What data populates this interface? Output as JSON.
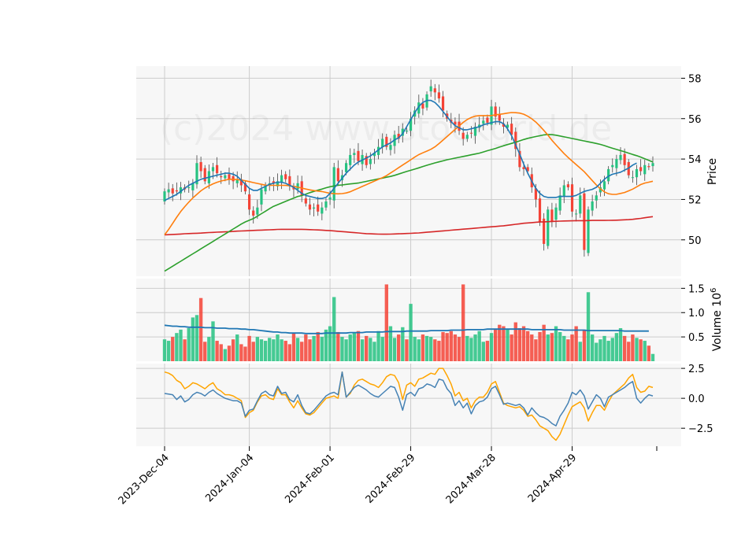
{
  "watermark": "(c)2024 www.stockgrid.de",
  "colors": {
    "up": "#26c281",
    "down": "#f44336",
    "ma_fast": "#1f77b4",
    "ma_mid": "#ff7f0e",
    "ma_slow": "#2ca02c",
    "ma_long": "#d62728",
    "vol_avg": "#1f77b4",
    "osc_a": "#4682b4",
    "osc_b": "#ffa500",
    "panel_bg": "#f7f7f7",
    "grid": "#cccccc"
  },
  "chart_data": [
    {
      "type": "candlestick",
      "ylabel": "Price",
      "ylim": [
        48.2,
        58.6
      ],
      "yticks": [
        50,
        52,
        54,
        56,
        58
      ],
      "xticks": [
        {
          "index": 0,
          "label": "2023-Dec-04"
        },
        {
          "index": 21,
          "label": "2024-Jan-04"
        },
        {
          "index": 41,
          "label": "2024-Feb-01"
        },
        {
          "index": 61,
          "label": "2024-Feb-29"
        },
        {
          "index": 81,
          "label": "2024-Mar-28"
        },
        {
          "index": 101,
          "label": "2024-Apr-29"
        }
      ],
      "close": [
        52.4,
        52.5,
        52.3,
        52.4,
        52.6,
        52.5,
        52.6,
        52.8,
        53.8,
        53.4,
        52.9,
        53.4,
        53.6,
        53.3,
        53.1,
        53.2,
        53.0,
        52.9,
        53.0,
        52.7,
        52.4,
        51.5,
        51.2,
        51.6,
        52.5,
        52.7,
        52.8,
        52.8,
        52.9,
        53.2,
        53.0,
        52.7,
        52.5,
        52.8,
        52.2,
        51.8,
        51.5,
        51.6,
        51.4,
        51.6,
        51.9,
        52.1,
        53.6,
        52.9,
        53.2,
        53.8,
        54.2,
        54.3,
        53.9,
        54.2,
        53.7,
        54.0,
        54.3,
        54.6,
        55.0,
        54.6,
        54.7,
        55.2,
        55.0,
        55.5,
        55.4,
        56.0,
        56.4,
        56.8,
        56.5,
        57.2,
        57.6,
        57.3,
        57.0,
        56.4,
        56.0,
        55.8,
        55.7,
        55.4,
        55.0,
        55.2,
        55.3,
        55.6,
        55.7,
        55.9,
        55.8,
        56.6,
        56.1,
        55.9,
        55.6,
        55.7,
        55.2,
        54.5,
        53.6,
        53.5,
        53.4,
        52.6,
        52.0,
        50.9,
        49.8,
        51.5,
        50.9,
        51.6,
        52.2,
        52.7,
        52.6,
        51.4,
        51.3,
        52.2,
        49.5,
        51.5,
        51.9,
        52.2,
        52.6,
        52.9,
        53.5,
        53.7,
        54.0,
        54.2,
        53.7,
        53.2,
        53.1,
        53.5,
        53.4,
        53.7,
        53.6,
        53.8
      ],
      "ma_fast": [
        51.95,
        52.05,
        52.15,
        52.25,
        52.4,
        52.55,
        52.7,
        52.8,
        52.9,
        53.0,
        53.05,
        53.1,
        53.15,
        53.2,
        53.25,
        53.3,
        53.3,
        53.25,
        53.15,
        52.95,
        52.75,
        52.55,
        52.45,
        52.45,
        52.55,
        52.65,
        52.75,
        52.8,
        52.85,
        52.85,
        52.8,
        52.7,
        52.6,
        52.45,
        52.3,
        52.2,
        52.15,
        52.1,
        52.05,
        52.05,
        52.1,
        52.3,
        52.55,
        52.8,
        53.05,
        53.3,
        53.5,
        53.7,
        53.85,
        53.95,
        54.05,
        54.15,
        54.3,
        54.45,
        54.6,
        54.7,
        54.8,
        54.95,
        55.05,
        55.25,
        55.6,
        55.95,
        56.3,
        56.6,
        56.8,
        56.9,
        56.9,
        56.8,
        56.6,
        56.35,
        56.1,
        55.85,
        55.65,
        55.55,
        55.45,
        55.45,
        55.5,
        55.55,
        55.6,
        55.7,
        55.75,
        55.8,
        55.85,
        55.85,
        55.75,
        55.5,
        55.15,
        54.7,
        54.25,
        53.75,
        53.3,
        52.9,
        52.55,
        52.3,
        52.15,
        52.1,
        52.1,
        52.1,
        52.15,
        52.15,
        52.15,
        52.15,
        52.2,
        52.3,
        52.4,
        52.45,
        52.5,
        52.6,
        52.8,
        53.0,
        53.15,
        53.25,
        53.3,
        53.35,
        53.45,
        53.55,
        53.7,
        53.8
      ],
      "ma_mid": [
        50.25,
        50.55,
        50.9,
        51.25,
        51.55,
        51.8,
        52.05,
        52.25,
        52.45,
        52.6,
        52.72,
        52.82,
        52.9,
        52.95,
        53.0,
        53.0,
        52.98,
        52.95,
        52.9,
        52.85,
        52.8,
        52.75,
        52.7,
        52.7,
        52.7,
        52.7,
        52.7,
        52.68,
        52.65,
        52.6,
        52.55,
        52.5,
        52.45,
        52.42,
        52.4,
        52.35,
        52.3,
        52.28,
        52.28,
        52.3,
        52.35,
        52.45,
        52.55,
        52.65,
        52.75,
        52.85,
        52.95,
        53.05,
        53.15,
        53.3,
        53.45,
        53.6,
        53.75,
        53.9,
        54.05,
        54.2,
        54.3,
        54.4,
        54.5,
        54.65,
        54.85,
        55.05,
        55.25,
        55.45,
        55.65,
        55.85,
        56.0,
        56.1,
        56.15,
        56.15,
        56.15,
        56.15,
        56.2,
        56.22,
        56.25,
        56.3,
        56.3,
        56.28,
        56.22,
        56.1,
        55.95,
        55.75,
        55.5,
        55.25,
        54.95,
        54.7,
        54.45,
        54.2,
        54.0,
        53.8,
        53.6,
        53.4,
        53.15,
        52.9,
        52.65,
        52.45,
        52.3,
        52.25,
        52.25,
        52.3,
        52.35,
        52.45,
        52.55,
        52.7,
        52.8,
        52.85,
        52.9
      ],
      "ma_slow": [
        48.45,
        48.6,
        48.75,
        48.9,
        49.05,
        49.2,
        49.35,
        49.5,
        49.65,
        49.8,
        49.95,
        50.1,
        50.25,
        50.4,
        50.55,
        50.7,
        50.85,
        50.95,
        51.05,
        51.2,
        51.35,
        51.5,
        51.65,
        51.75,
        51.85,
        51.95,
        52.05,
        52.15,
        52.2,
        52.3,
        52.38,
        52.45,
        52.52,
        52.6,
        52.65,
        52.7,
        52.72,
        52.75,
        52.78,
        52.8,
        52.85,
        52.9,
        52.95,
        53.0,
        53.05,
        53.1,
        53.15,
        53.22,
        53.3,
        53.38,
        53.45,
        53.52,
        53.6,
        53.68,
        53.75,
        53.82,
        53.88,
        53.95,
        54.0,
        54.05,
        54.1,
        54.15,
        54.2,
        54.25,
        54.3,
        54.38,
        54.45,
        54.52,
        54.6,
        54.68,
        54.75,
        54.82,
        54.9,
        54.98,
        55.05,
        55.1,
        55.15,
        55.2,
        55.22,
        55.2,
        55.15,
        55.1,
        55.05,
        55.0,
        54.95,
        54.9,
        54.85,
        54.8,
        54.75,
        54.68,
        54.6,
        54.52,
        54.45,
        54.38,
        54.3,
        54.22,
        54.15,
        54.05,
        53.95,
        53.85
      ],
      "ma_long": [
        50.25,
        50.26,
        50.27,
        50.28,
        50.3,
        50.31,
        50.32,
        50.33,
        50.34,
        50.36,
        50.37,
        50.38,
        50.39,
        50.4,
        50.41,
        50.43,
        50.44,
        50.45,
        50.46,
        50.47,
        50.48,
        50.49,
        50.5,
        50.51,
        50.52,
        50.52,
        50.52,
        50.52,
        50.52,
        50.52,
        50.51,
        50.5,
        50.49,
        50.48,
        50.46,
        50.45,
        50.43,
        50.41,
        50.39,
        50.37,
        50.35,
        50.33,
        50.31,
        50.3,
        50.29,
        50.28,
        50.28,
        50.28,
        50.29,
        50.3,
        50.31,
        50.32,
        50.33,
        50.34,
        50.36,
        50.38,
        50.4,
        50.42,
        50.44,
        50.46,
        50.48,
        50.5,
        50.52,
        50.54,
        50.56,
        50.58,
        50.6,
        50.62,
        50.64,
        50.66,
        50.68,
        50.7,
        50.73,
        50.76,
        50.79,
        50.82,
        50.84,
        50.86,
        50.88,
        50.89,
        50.9,
        50.91,
        50.92,
        50.93,
        50.94,
        50.94,
        50.95,
        50.95,
        50.95,
        50.96,
        50.96,
        50.96,
        50.96,
        50.97,
        50.97,
        50.98,
        50.99,
        51.0,
        51.02,
        51.05,
        51.08,
        51.12,
        51.15
      ]
    },
    {
      "type": "bar",
      "ylabel": "Volume  10^6",
      "ylim": [
        0,
        1.7
      ],
      "yticks": [
        0.5,
        1.0,
        1.5
      ],
      "values": [
        0.45,
        0.42,
        0.5,
        0.58,
        0.65,
        0.45,
        0.68,
        0.9,
        0.95,
        1.3,
        0.4,
        0.5,
        0.82,
        0.42,
        0.35,
        0.25,
        0.32,
        0.45,
        0.55,
        0.35,
        0.3,
        0.52,
        0.4,
        0.5,
        0.45,
        0.42,
        0.48,
        0.45,
        0.55,
        0.45,
        0.42,
        0.35,
        0.58,
        0.48,
        0.4,
        0.55,
        0.45,
        0.52,
        0.6,
        0.5,
        0.65,
        0.72,
        1.32,
        0.6,
        0.5,
        0.45,
        0.55,
        0.58,
        0.62,
        0.45,
        0.52,
        0.48,
        0.4,
        0.62,
        0.5,
        1.58,
        0.72,
        0.48,
        0.55,
        0.7,
        0.45,
        1.18,
        0.5,
        0.45,
        0.55,
        0.52,
        0.5,
        0.45,
        0.42,
        0.6,
        0.58,
        0.62,
        0.55,
        0.5,
        1.58,
        0.52,
        0.48,
        0.55,
        0.62,
        0.4,
        0.42,
        0.58,
        0.65,
        0.75,
        0.72,
        0.65,
        0.55,
        0.8,
        0.68,
        0.72,
        0.62,
        0.55,
        0.45,
        0.6,
        0.75,
        0.55,
        0.58,
        0.72,
        0.6,
        0.52,
        0.45,
        0.55,
        0.72,
        0.4,
        0.65,
        1.42,
        0.55,
        0.38,
        0.45,
        0.52,
        0.42,
        0.48,
        0.58,
        0.68,
        0.52,
        0.4,
        0.55,
        0.48,
        0.45,
        0.42,
        0.32,
        0.15
      ],
      "avg": [
        0.74,
        0.73,
        0.72,
        0.72,
        0.71,
        0.71,
        0.7,
        0.7,
        0.7,
        0.7,
        0.69,
        0.69,
        0.69,
        0.68,
        0.68,
        0.68,
        0.67,
        0.67,
        0.67,
        0.66,
        0.66,
        0.65,
        0.65,
        0.64,
        0.63,
        0.62,
        0.61,
        0.6,
        0.6,
        0.59,
        0.59,
        0.58,
        0.58,
        0.58,
        0.58,
        0.57,
        0.57,
        0.57,
        0.57,
        0.57,
        0.58,
        0.58,
        0.58,
        0.58,
        0.58,
        0.58,
        0.59,
        0.59,
        0.59,
        0.59,
        0.6,
        0.6,
        0.6,
        0.6,
        0.6,
        0.61,
        0.61,
        0.61,
        0.61,
        0.61,
        0.62,
        0.62,
        0.62,
        0.62,
        0.62,
        0.62,
        0.63,
        0.63,
        0.63,
        0.63,
        0.63,
        0.64,
        0.64,
        0.64,
        0.64,
        0.65,
        0.65,
        0.65,
        0.65,
        0.65,
        0.66,
        0.66,
        0.66,
        0.66,
        0.66,
        0.66,
        0.66,
        0.66,
        0.66,
        0.66,
        0.66,
        0.65,
        0.65,
        0.65,
        0.65,
        0.65,
        0.65,
        0.65,
        0.65,
        0.64,
        0.64,
        0.64,
        0.64,
        0.64,
        0.64,
        0.63,
        0.63,
        0.63,
        0.63,
        0.63,
        0.63,
        0.63,
        0.63,
        0.63,
        0.62,
        0.62,
        0.62,
        0.62,
        0.62,
        0.62,
        0.62
      ]
    },
    {
      "type": "line",
      "ylim": [
        -4.0,
        2.9
      ],
      "yticks": [
        -2.5,
        0.0,
        2.5
      ],
      "series": [
        {
          "values": [
            0.4,
            0.35,
            0.3,
            -0.1,
            0.2,
            -0.3,
            -0.1,
            0.3,
            0.5,
            0.4,
            0.2,
            0.5,
            0.7,
            0.4,
            0.2,
            0.0,
            -0.1,
            -0.2,
            -0.2,
            -0.4,
            -1.5,
            -1.0,
            -0.9,
            -0.2,
            0.4,
            0.6,
            0.3,
            0.2,
            1.0,
            0.4,
            0.5,
            -0.1,
            -0.3,
            0.3,
            -0.6,
            -1.2,
            -1.3,
            -1.0,
            -0.6,
            -0.2,
            0.2,
            0.4,
            0.5,
            0.3,
            2.2,
            0.1,
            0.5,
            0.9,
            1.1,
            0.9,
            0.7,
            0.4,
            0.2,
            0.1,
            0.4,
            0.7,
            1.0,
            0.9,
            0.1,
            -1.0,
            0.3,
            0.5,
            0.2,
            0.8,
            0.9,
            1.2,
            1.1,
            0.9,
            1.6,
            1.5,
            0.8,
            0.4,
            -0.6,
            -0.2,
            -0.8,
            -0.4,
            -1.3,
            -0.6,
            -0.3,
            -0.2,
            0.1,
            0.8,
            1.0,
            0.3,
            -0.5,
            -0.4,
            -0.5,
            -0.6,
            -0.5,
            -0.8,
            -1.4,
            -0.8,
            -1.2,
            -1.5,
            -1.6,
            -1.8,
            -2.1,
            -2.3,
            -1.5,
            -1.0,
            -0.4,
            0.5,
            0.3,
            0.7,
            0.2,
            -0.9,
            -0.3,
            0.3,
            0.0,
            -0.7,
            0.1,
            0.3,
            0.5,
            0.7,
            0.9,
            1.2,
            1.4,
            0.0,
            -0.4,
            0.0,
            0.3,
            0.2
          ]
        },
        {
          "values": [
            2.2,
            2.1,
            1.9,
            1.5,
            1.3,
            0.8,
            1.0,
            1.3,
            1.2,
            1.0,
            0.8,
            1.1,
            1.3,
            0.8,
            0.6,
            0.3,
            0.3,
            0.2,
            0.0,
            -0.2,
            -1.6,
            -1.2,
            -1.0,
            -0.3,
            0.2,
            0.3,
            0.0,
            -0.1,
            0.8,
            0.3,
            0.3,
            -0.3,
            -0.8,
            -0.2,
            -0.8,
            -1.3,
            -1.4,
            -1.2,
            -0.8,
            -0.4,
            0.0,
            0.1,
            0.2,
            0.0,
            2.2,
            0.1,
            0.4,
            1.1,
            1.5,
            1.6,
            1.4,
            1.2,
            1.1,
            0.9,
            1.3,
            1.8,
            2.0,
            1.9,
            1.3,
            -0.1,
            1.1,
            1.3,
            1.0,
            1.6,
            1.7,
            1.9,
            2.1,
            2.0,
            2.5,
            2.5,
            1.9,
            1.2,
            0.2,
            0.5,
            -0.2,
            0.0,
            -0.8,
            -0.2,
            0.1,
            0.1,
            0.5,
            1.2,
            1.4,
            0.5,
            -0.4,
            -0.6,
            -0.7,
            -0.8,
            -0.7,
            -1.0,
            -1.5,
            -1.4,
            -1.8,
            -2.3,
            -2.5,
            -2.7,
            -3.2,
            -3.5,
            -3.0,
            -2.2,
            -1.4,
            -0.7,
            -0.5,
            -0.3,
            -0.8,
            -1.9,
            -1.2,
            -0.6,
            -0.6,
            -1.0,
            -0.3,
            0.3,
            0.6,
            0.9,
            1.2,
            1.7,
            2.0,
            0.9,
            0.5,
            0.6,
            1.0,
            0.9
          ]
        }
      ]
    }
  ]
}
